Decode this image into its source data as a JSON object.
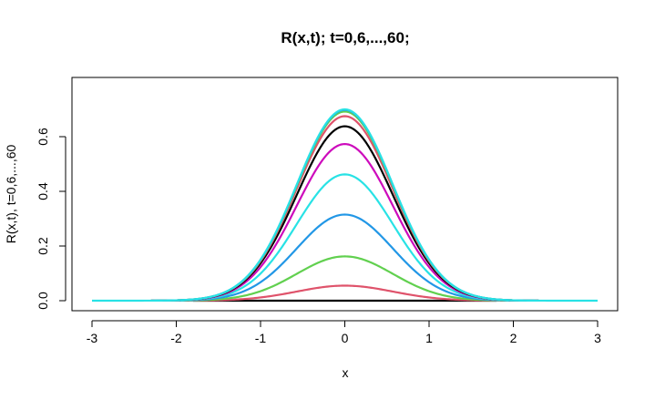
{
  "chart_data": {
    "type": "line",
    "title": "R(x,t); t=0,6,...,60;",
    "xlabel": "x",
    "ylabel": "R(x,t), t=0,6,...,60",
    "xlim": [
      -3,
      3
    ],
    "ylim": [
      0,
      0.7
    ],
    "x_ticks": [
      -3,
      -2,
      -1,
      0,
      1,
      2,
      3
    ],
    "x_tick_labels": [
      "-3",
      "-2",
      "-1",
      "0",
      "1",
      "2",
      "3"
    ],
    "y_ticks": [
      0.0,
      0.2,
      0.4,
      0.6
    ],
    "y_tick_labels": [
      "0.0",
      "0.2",
      "0.4",
      "0.6"
    ],
    "grid": false,
    "legend": "none",
    "curve_shape": "gaussian",
    "curve_sigma": 0.57,
    "series": [
      {
        "color": "#000000",
        "peak": 0.0,
        "x_range": [
          -1.8,
          1.8
        ]
      },
      {
        "color": "#DF536B",
        "peak": 0.055,
        "x_range": [
          -2.0,
          2.0
        ]
      },
      {
        "color": "#61D04F",
        "peak": 0.162,
        "x_range": [
          -2.1,
          2.1
        ]
      },
      {
        "color": "#2297E6",
        "peak": 0.315,
        "x_range": [
          -2.2,
          2.2
        ]
      },
      {
        "color": "#28E2E5",
        "peak": 0.462,
        "x_range": [
          -2.3,
          2.3
        ]
      },
      {
        "color": "#CD0BBC",
        "peak": 0.573,
        "x_range": [
          -2.3,
          2.3
        ]
      },
      {
        "color": "#000000",
        "peak": 0.638,
        "x_range": [
          -2.3,
          2.3
        ]
      },
      {
        "color": "#DF536B",
        "peak": 0.675,
        "x_range": [
          -2.3,
          2.3
        ]
      },
      {
        "color": "#61D04F",
        "peak": 0.692,
        "x_range": [
          -2.3,
          2.3
        ]
      },
      {
        "color": "#2297E6",
        "peak": 0.698,
        "x_range": [
          -2.3,
          2.3
        ]
      },
      {
        "color": "#28E2E5",
        "peak": 0.7,
        "x_range": [
          -3.0,
          3.0
        ]
      }
    ]
  }
}
